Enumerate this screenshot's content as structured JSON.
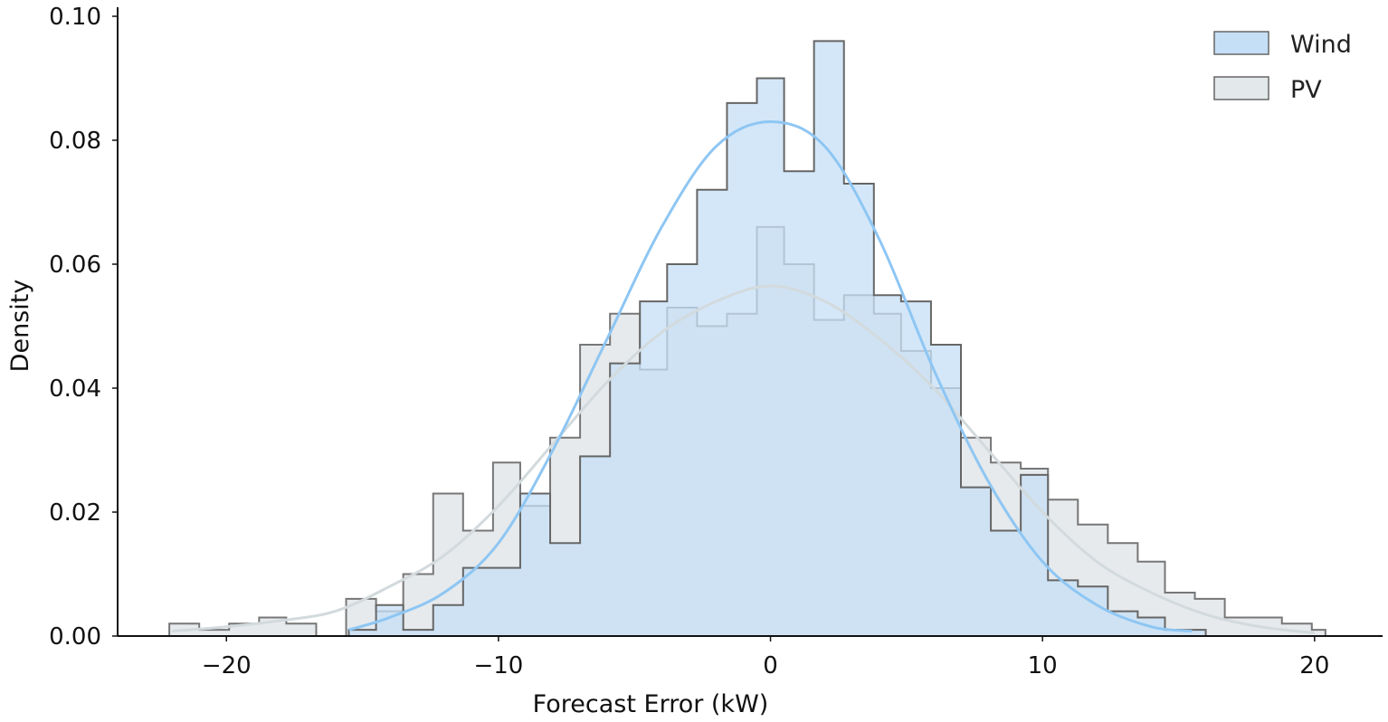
{
  "chart_data": {
    "type": "histogram",
    "title": "",
    "xlabel": "Forecast Error (kW)",
    "ylabel": "Density",
    "xlim": [
      -24,
      22.5
    ],
    "ylim": [
      0,
      0.1
    ],
    "xticks": [
      -20,
      -10,
      0,
      10,
      20
    ],
    "xtick_labels": [
      "−20",
      "−10",
      "0",
      "10",
      "20"
    ],
    "yticks": [
      0.0,
      0.02,
      0.04,
      0.06,
      0.08,
      0.1
    ],
    "ytick_labels": [
      "0.00",
      "0.02",
      "0.04",
      "0.06",
      "0.08",
      "0.10"
    ],
    "grid": false,
    "legend_position": "top-right",
    "series": [
      {
        "name": "PV",
        "color": "#dde3e6",
        "edge_color": "#777777",
        "kde_color": "#d3dadd",
        "bin_edges": [
          -22.1,
          -21.0,
          -19.9,
          -18.8,
          -17.8,
          -16.7,
          -15.6,
          -14.5,
          -13.5,
          -12.4,
          -11.3,
          -10.2,
          -9.2,
          -8.1,
          -7.0,
          -5.9,
          -4.8,
          -3.8,
          -2.7,
          -1.6,
          -0.5,
          0.5,
          1.6,
          2.7,
          3.8,
          4.8,
          5.9,
          7.0,
          8.1,
          9.2,
          10.2,
          11.3,
          12.4,
          13.5,
          14.5,
          15.6,
          16.7,
          17.8,
          18.8,
          19.9,
          20.4
        ],
        "values": [
          0.002,
          0.001,
          0.002,
          0.003,
          0.002,
          0.0,
          0.006,
          0.004,
          0.01,
          0.023,
          0.017,
          0.028,
          0.021,
          0.032,
          0.047,
          0.052,
          0.043,
          0.053,
          0.05,
          0.052,
          0.066,
          0.06,
          0.051,
          0.055,
          0.052,
          0.046,
          0.04,
          0.032,
          0.028,
          0.027,
          0.022,
          0.018,
          0.015,
          0.012,
          0.007,
          0.006,
          0.003,
          0.003,
          0.002,
          0.001
        ],
        "kde": {
          "x": [
            -22,
            -20,
            -18,
            -16,
            -14,
            -12,
            -10,
            -8,
            -6,
            -4,
            -2,
            0,
            2,
            4,
            6,
            8,
            10,
            12,
            14,
            16,
            18,
            20
          ],
          "y": [
            0.0008,
            0.0015,
            0.0025,
            0.004,
            0.008,
            0.013,
            0.021,
            0.031,
            0.041,
            0.049,
            0.054,
            0.0565,
            0.054,
            0.048,
            0.04,
            0.03,
            0.02,
            0.012,
            0.007,
            0.0035,
            0.0015,
            0.0005
          ]
        }
      },
      {
        "name": "Wind",
        "color": "#c5dff6",
        "edge_color": "#666666",
        "kde_color": "#8ec6f3",
        "bin_edges": [
          -15.5,
          -14.5,
          -13.5,
          -12.4,
          -11.3,
          -10.2,
          -9.2,
          -8.1,
          -7.0,
          -5.9,
          -4.8,
          -3.8,
          -2.7,
          -1.6,
          -0.5,
          0.5,
          1.6,
          2.7,
          3.8,
          4.8,
          5.9,
          7.0,
          8.1,
          9.2,
          10.2,
          11.3,
          12.4,
          13.5,
          14.5,
          15.6,
          16.0
        ],
        "values": [
          0.001,
          0.005,
          0.001,
          0.005,
          0.011,
          0.011,
          0.023,
          0.015,
          0.029,
          0.044,
          0.054,
          0.06,
          0.072,
          0.086,
          0.09,
          0.075,
          0.096,
          0.073,
          0.055,
          0.054,
          0.047,
          0.024,
          0.017,
          0.026,
          0.009,
          0.008,
          0.004,
          0.003,
          0.001,
          0.001
        ],
        "kde": {
          "x": [
            -15.5,
            -14,
            -12,
            -10,
            -8,
            -6,
            -4,
            -2,
            0,
            2,
            4,
            6,
            8,
            10,
            12,
            14,
            15.5
          ],
          "y": [
            0.001,
            0.003,
            0.007,
            0.015,
            0.03,
            0.048,
            0.066,
            0.079,
            0.083,
            0.079,
            0.064,
            0.043,
            0.025,
            0.012,
            0.005,
            0.0015,
            0.0008
          ]
        }
      }
    ],
    "legend": [
      {
        "label": "Wind",
        "color": "#c5dff6",
        "edge_color": "#666666"
      },
      {
        "label": "PV",
        "color": "#e3e8ea",
        "edge_color": "#666666"
      }
    ]
  }
}
